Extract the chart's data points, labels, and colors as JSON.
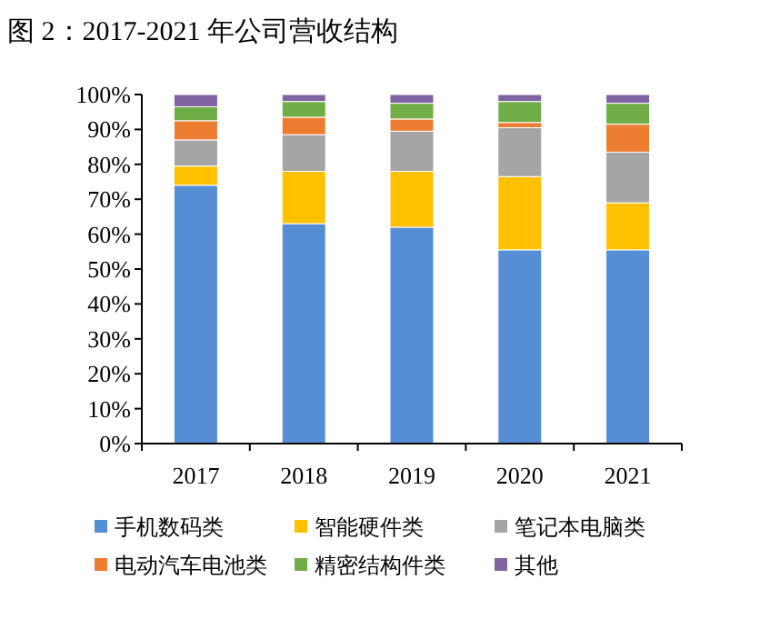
{
  "chart_data": {
    "type": "bar",
    "stacked": true,
    "title": "图 2：2017-2021 年公司营收结构",
    "categories": [
      "2017",
      "2018",
      "2019",
      "2020",
      "2021"
    ],
    "series": [
      {
        "name": "手机数码类",
        "color": "#558ed5",
        "values": [
          74,
          63,
          62,
          55.5,
          55.5
        ]
      },
      {
        "name": "智能硬件类",
        "color": "#ffc000",
        "values": [
          5.5,
          15,
          16,
          21,
          13.5
        ]
      },
      {
        "name": "笔记本电脑类",
        "color": "#a5a5a5",
        "values": [
          7.5,
          10.5,
          11.5,
          14,
          14.5
        ]
      },
      {
        "name": "电动汽车电池类",
        "color": "#ed7d31",
        "values": [
          5.5,
          5,
          3.5,
          1.5,
          8
        ]
      },
      {
        "name": "精密结构件类",
        "color": "#70ad47",
        "values": [
          4,
          4.5,
          4.5,
          6,
          6
        ]
      },
      {
        "name": "其他",
        "color": "#8064a2",
        "values": [
          3.5,
          2,
          2.5,
          2,
          2.5
        ]
      }
    ],
    "ylim": [
      0,
      100
    ],
    "yticks": [
      {
        "value": 0,
        "label": "0%"
      },
      {
        "value": 10,
        "label": "10%"
      },
      {
        "value": 20,
        "label": "20%"
      },
      {
        "value": 30,
        "label": "30%"
      },
      {
        "value": 40,
        "label": "40%"
      },
      {
        "value": 50,
        "label": "50%"
      },
      {
        "value": 60,
        "label": "60%"
      },
      {
        "value": 70,
        "label": "70%"
      },
      {
        "value": 80,
        "label": "80%"
      },
      {
        "value": 90,
        "label": "90%"
      },
      {
        "value": 100,
        "label": "100%"
      }
    ],
    "grid": false,
    "legend": "bottom"
  }
}
